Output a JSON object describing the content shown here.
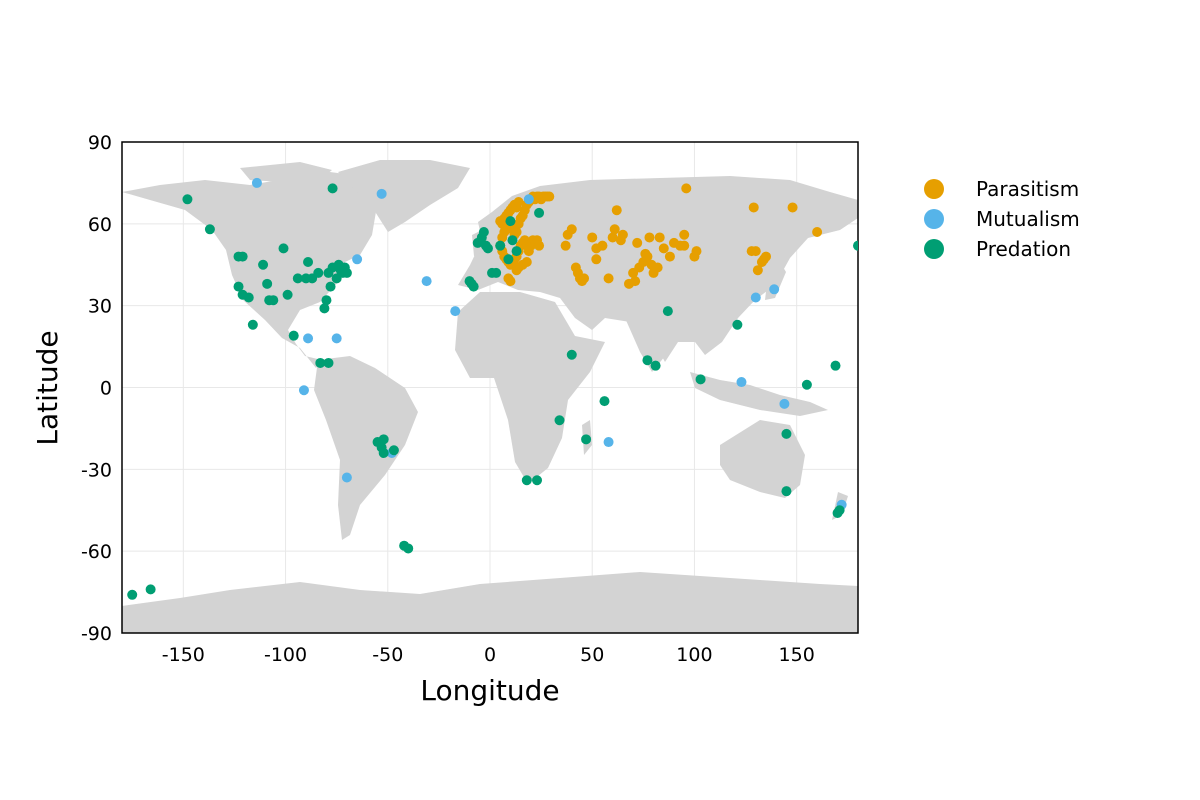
{
  "chart_data": {
    "type": "scatter",
    "title": "",
    "xlabel": "Longitude",
    "ylabel": "Latitude",
    "xlim": [
      -180,
      180
    ],
    "ylim": [
      -90,
      90
    ],
    "xticks": [
      -150,
      -100,
      -50,
      0,
      50,
      100,
      150
    ],
    "yticks": [
      -90,
      -60,
      -30,
      0,
      30,
      60,
      90
    ],
    "grid": true,
    "legend_position": "outside-right",
    "background": "world-map",
    "series": [
      {
        "name": "Parasitism",
        "color": "#E69F00",
        "points": [
          [
            5,
            61
          ],
          [
            6,
            60
          ],
          [
            7,
            62
          ],
          [
            8,
            63
          ],
          [
            9,
            64
          ],
          [
            10,
            65
          ],
          [
            11,
            66
          ],
          [
            12,
            67
          ],
          [
            13,
            66
          ],
          [
            14,
            68
          ],
          [
            6,
            55
          ],
          [
            7,
            57
          ],
          [
            8,
            58
          ],
          [
            9,
            59
          ],
          [
            10,
            60
          ],
          [
            11,
            58
          ],
          [
            12,
            56
          ],
          [
            13,
            57
          ],
          [
            14,
            60
          ],
          [
            15,
            62
          ],
          [
            16,
            63
          ],
          [
            17,
            65
          ],
          [
            18,
            67
          ],
          [
            19,
            68
          ],
          [
            20,
            69
          ],
          [
            21,
            70
          ],
          [
            22,
            69
          ],
          [
            23,
            70
          ],
          [
            24,
            70
          ],
          [
            25,
            69
          ],
          [
            26,
            70
          ],
          [
            27,
            70
          ],
          [
            28,
            70
          ],
          [
            29,
            70
          ],
          [
            5,
            52
          ],
          [
            6,
            50
          ],
          [
            7,
            48
          ],
          [
            8,
            47
          ],
          [
            9,
            46
          ],
          [
            10,
            45
          ],
          [
            11,
            46
          ],
          [
            12,
            47
          ],
          [
            13,
            48
          ],
          [
            14,
            50
          ],
          [
            15,
            52
          ],
          [
            16,
            53
          ],
          [
            17,
            54
          ],
          [
            18,
            52
          ],
          [
            19,
            50
          ],
          [
            20,
            52
          ],
          [
            21,
            54
          ],
          [
            22,
            53
          ],
          [
            23,
            54
          ],
          [
            24,
            52
          ],
          [
            9,
            40
          ],
          [
            10,
            39
          ],
          [
            13,
            43
          ],
          [
            14,
            44
          ],
          [
            16,
            45
          ],
          [
            18,
            46
          ],
          [
            37,
            52
          ],
          [
            38,
            56
          ],
          [
            40,
            58
          ],
          [
            42,
            44
          ],
          [
            43,
            42
          ],
          [
            44,
            40
          ],
          [
            45,
            39
          ],
          [
            46,
            40
          ],
          [
            50,
            55
          ],
          [
            52,
            51
          ],
          [
            52,
            47
          ],
          [
            55,
            52
          ],
          [
            58,
            40
          ],
          [
            60,
            55
          ],
          [
            61,
            58
          ],
          [
            62,
            65
          ],
          [
            64,
            54
          ],
          [
            65,
            56
          ],
          [
            68,
            38
          ],
          [
            70,
            42
          ],
          [
            71,
            39
          ],
          [
            72,
            53
          ],
          [
            73,
            44
          ],
          [
            75,
            46
          ],
          [
            76,
            49
          ],
          [
            77,
            48
          ],
          [
            78,
            55
          ],
          [
            79,
            45
          ],
          [
            80,
            42
          ],
          [
            82,
            44
          ],
          [
            83,
            55
          ],
          [
            85,
            51
          ],
          [
            88,
            48
          ],
          [
            90,
            53
          ],
          [
            93,
            52
          ],
          [
            95,
            52
          ],
          [
            95,
            56
          ],
          [
            96,
            73
          ],
          [
            100,
            48
          ],
          [
            101,
            50
          ],
          [
            128,
            50
          ],
          [
            129,
            66
          ],
          [
            130,
            50
          ],
          [
            131,
            43
          ],
          [
            133,
            46
          ],
          [
            134,
            47
          ],
          [
            135,
            48
          ],
          [
            148,
            66
          ],
          [
            160,
            57
          ]
        ]
      },
      {
        "name": "Mutualism",
        "color": "#56B4E9",
        "points": [
          [
            -114,
            75
          ],
          [
            -53,
            71
          ],
          [
            -65,
            47
          ],
          [
            -31,
            39
          ],
          [
            -17,
            28
          ],
          [
            -91,
            -1
          ],
          [
            -89,
            18
          ],
          [
            -75,
            18
          ],
          [
            -70,
            -33
          ],
          [
            -48,
            -24
          ],
          [
            19,
            69
          ],
          [
            58,
            -20
          ],
          [
            123,
            2
          ],
          [
            130,
            33
          ],
          [
            139,
            36
          ],
          [
            144,
            -6
          ],
          [
            172,
            -43
          ]
        ]
      },
      {
        "name": "Predation",
        "color": "#009E73",
        "points": [
          [
            -148,
            69
          ],
          [
            -137,
            58
          ],
          [
            -123,
            48
          ],
          [
            -121,
            48
          ],
          [
            -123,
            37
          ],
          [
            -121,
            34
          ],
          [
            -118,
            33
          ],
          [
            -116,
            23
          ],
          [
            -111,
            45
          ],
          [
            -109,
            38
          ],
          [
            -108,
            32
          ],
          [
            -106,
            32
          ],
          [
            -101,
            51
          ],
          [
            -99,
            34
          ],
          [
            -96,
            19
          ],
          [
            -94,
            40
          ],
          [
            -90,
            40
          ],
          [
            -89,
            46
          ],
          [
            -87,
            40
          ],
          [
            -84,
            42
          ],
          [
            -83,
            9
          ],
          [
            -81,
            29
          ],
          [
            -79,
            9
          ],
          [
            -80,
            32
          ],
          [
            -79,
            42
          ],
          [
            -78,
            37
          ],
          [
            -77,
            44
          ],
          [
            -75,
            40
          ],
          [
            -74,
            45
          ],
          [
            -73,
            43
          ],
          [
            -72,
            42
          ],
          [
            -71,
            44
          ],
          [
            -70,
            42
          ],
          [
            -77,
            73
          ],
          [
            -55,
            -20
          ],
          [
            -52,
            -19
          ],
          [
            -53,
            -22
          ],
          [
            -52,
            -24
          ],
          [
            -47,
            -23
          ],
          [
            -42,
            -58
          ],
          [
            -40,
            -59
          ],
          [
            -10,
            39
          ],
          [
            -9,
            38
          ],
          [
            -8,
            37
          ],
          [
            -6,
            53
          ],
          [
            -4,
            55
          ],
          [
            -3,
            57
          ],
          [
            -2,
            52
          ],
          [
            -1,
            51
          ],
          [
            1,
            42
          ],
          [
            3,
            42
          ],
          [
            5,
            52
          ],
          [
            9,
            47
          ],
          [
            10,
            61
          ],
          [
            11,
            54
          ],
          [
            13,
            50
          ],
          [
            18,
            -34
          ],
          [
            23,
            -34
          ],
          [
            24,
            64
          ],
          [
            34,
            -12
          ],
          [
            40,
            12
          ],
          [
            47,
            -19
          ],
          [
            56,
            -5
          ],
          [
            77,
            10
          ],
          [
            81,
            8
          ],
          [
            87,
            28
          ],
          [
            103,
            3
          ],
          [
            121,
            23
          ],
          [
            145,
            -17
          ],
          [
            145,
            -38
          ],
          [
            155,
            1
          ],
          [
            169,
            8
          ],
          [
            170,
            -46
          ],
          [
            171,
            -45
          ],
          [
            180,
            52
          ],
          [
            -175,
            -76
          ],
          [
            -166,
            -74
          ]
        ]
      }
    ]
  }
}
